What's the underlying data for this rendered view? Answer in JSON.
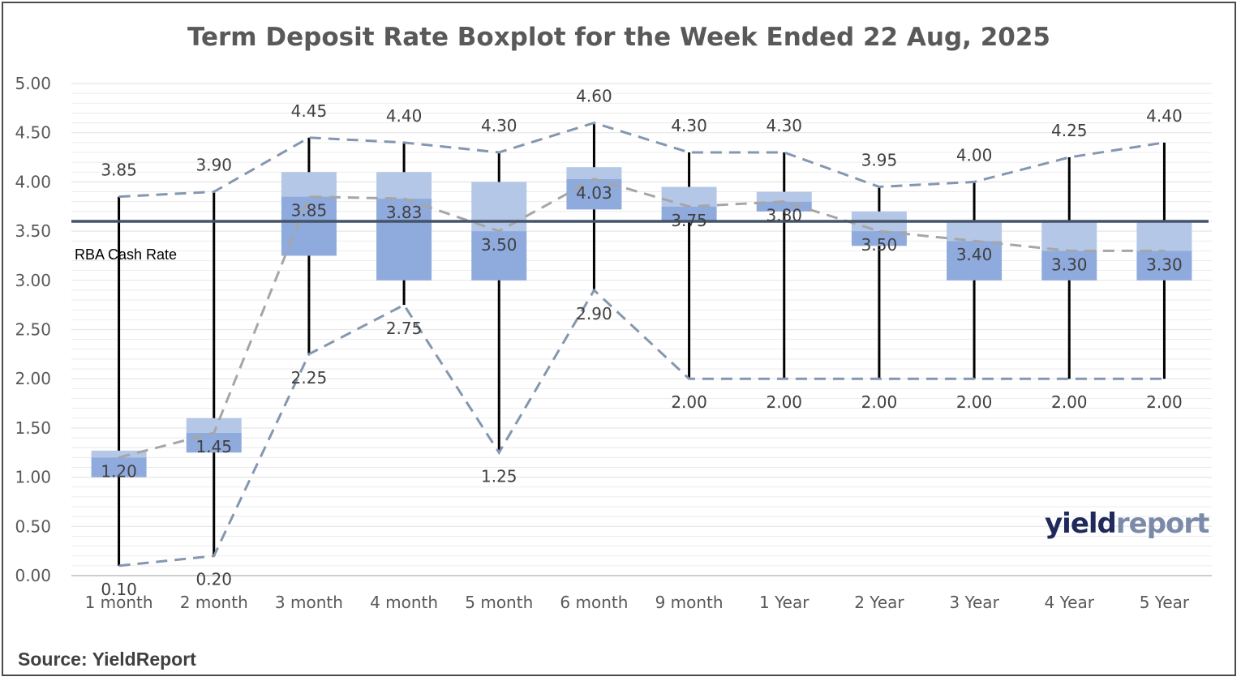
{
  "chart_data": {
    "type": "boxplot",
    "title": "Term Deposit Rate Boxplot for the Week Ended 22 Aug, 2025",
    "source": "Source: YieldReport",
    "logo": {
      "part1": "yield",
      "part2": "report"
    },
    "categories": [
      "1 month",
      "2 month",
      "3 month",
      "4 month",
      "5 month",
      "6 month",
      "9 month",
      "1  Year",
      "2  Year",
      "3  Year",
      "4  Year",
      "5  Year"
    ],
    "max": [
      3.85,
      3.9,
      4.45,
      4.4,
      4.3,
      4.6,
      4.3,
      4.3,
      3.95,
      4.0,
      4.25,
      4.4
    ],
    "q3": [
      1.27,
      1.6,
      4.1,
      4.1,
      4.0,
      4.15,
      3.95,
      3.9,
      3.7,
      3.6,
      3.6,
      3.6
    ],
    "median": [
      1.2,
      1.45,
      3.85,
      3.83,
      3.5,
      4.03,
      3.75,
      3.8,
      3.5,
      3.4,
      3.3,
      3.3
    ],
    "q1": [
      1.0,
      1.25,
      3.25,
      3.0,
      3.0,
      3.72,
      3.6,
      3.7,
      3.35,
      3.0,
      3.0,
      3.0
    ],
    "min": [
      0.1,
      0.2,
      2.25,
      2.75,
      1.25,
      2.9,
      2.0,
      2.0,
      2.0,
      2.0,
      2.0,
      2.0
    ],
    "max_labels": [
      "3.85",
      "3.90",
      "4.45",
      "4.40",
      "4.30",
      "4.60",
      "4.30",
      "4.30",
      "3.95",
      "4.00",
      "4.25",
      "4.40"
    ],
    "median_labels": [
      "1.20",
      "1.45",
      "3.85",
      "3.83",
      "3.50",
      "4.03",
      "3.75",
      "3.80",
      "3.50",
      "3.40",
      "3.30",
      "3.30"
    ],
    "min_labels": [
      "0.10",
      "0.20",
      "2.25",
      "2.75",
      "1.25",
      "2.90",
      "2.00",
      "2.00",
      "2.00",
      "2.00",
      "2.00",
      "2.00"
    ],
    "y_ticks": [
      "0.00",
      "0.50",
      "1.00",
      "1.50",
      "2.00",
      "2.50",
      "3.00",
      "3.50",
      "4.00",
      "4.50",
      "5.00"
    ],
    "ylim": [
      0,
      5
    ],
    "reference_line": {
      "label": "RBA Cash Rate",
      "value": 3.6
    },
    "colors": {
      "box_upper": "#b4c7e7",
      "box_lower": "#8faadc",
      "whisker": "#000000",
      "max_min_line": "#8497b0",
      "median_line": "#a6a6a6",
      "rba_line": "#44546a",
      "grid": "#e6e6e6"
    }
  }
}
